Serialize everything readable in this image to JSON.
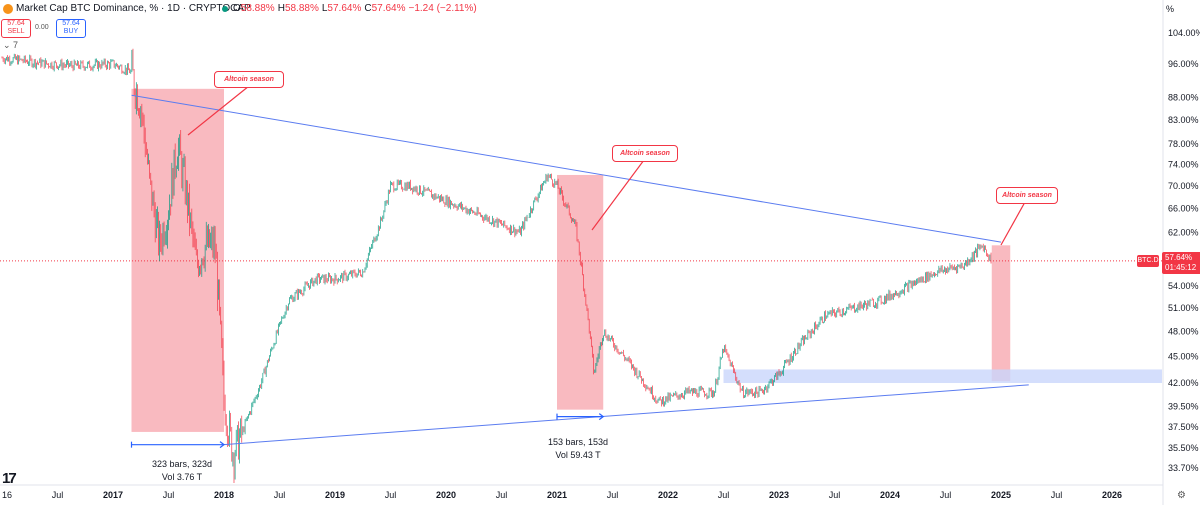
{
  "header": {
    "symbol_title": "Market Cap BTC Dominance, % · 1D · CRYPTOCAP",
    "ohlc": [
      {
        "label": "O",
        "value": "58.88%"
      },
      {
        "label": "H",
        "value": "58.88%"
      },
      {
        "label": "L",
        "value": "57.64%"
      },
      {
        "label": "C",
        "value": "57.64%"
      },
      {
        "label": "",
        "value": "−1.24 (−2.11%)"
      }
    ]
  },
  "trade": {
    "sell_price": "57.64",
    "sell_label": "SELL",
    "spread": "0.00",
    "buy_price": "57.64",
    "buy_label": "BUY",
    "indicator_toggle": "⌄ 7"
  },
  "price_axis": {
    "unit": "%",
    "ticks": [
      "104.00%",
      "96.00%",
      "88.00%",
      "83.00%",
      "78.00%",
      "74.00%",
      "70.00%",
      "66.00%",
      "62.00%",
      "54.00%",
      "51.00%",
      "48.00%",
      "45.00%",
      "42.00%",
      "39.50%",
      "37.50%",
      "35.50%",
      "33.70%"
    ]
  },
  "time_axis": {
    "ticks": [
      "16",
      "Jul",
      "2017",
      "Jul",
      "2018",
      "Jul",
      "2019",
      "Jul",
      "2020",
      "Jul",
      "2021",
      "Jul",
      "2022",
      "Jul",
      "2023",
      "Jul",
      "2024",
      "Jul",
      "2025",
      "Jul",
      "2026"
    ]
  },
  "current_price": {
    "symbol": "BTC.D",
    "price": "57.64%",
    "countdown": "01:45:12"
  },
  "annotations": [
    "Altcoin season",
    "Altcoin season",
    "Altcoin season"
  ],
  "measures": [
    {
      "line1": "323 bars, 323d",
      "line2": "Vol 3.76 T"
    },
    {
      "line1": "153 bars, 153d",
      "line2": "Vol 59.43 T"
    }
  ],
  "colors": {
    "up": "#089981",
    "down": "#f23645",
    "zone": "#f7a3ab",
    "support_zone": "#c9d6fb",
    "trendline": "#5b7cf0"
  },
  "chart_data": {
    "type": "line",
    "title": "Market Cap BTC Dominance, %",
    "ylim": [
      33.7,
      104
    ],
    "y_scale": "log",
    "series": [
      {
        "x": [
          "2016-01",
          "2016-06",
          "2016-09",
          "2017-01",
          "2017-03",
          "2017-04",
          "2017-05",
          "2017-06",
          "2017-07",
          "2017-08",
          "2017-10",
          "2017-11",
          "2017-12",
          "2018-01",
          "2018-02",
          "2018-03",
          "2018-05",
          "2018-08",
          "2018-11",
          "2019-01",
          "2019-04",
          "2019-06",
          "2019-07",
          "2019-09",
          "2019-12",
          "2020-03",
          "2020-06",
          "2020-09",
          "2020-12",
          "2021-01",
          "2021-03",
          "2021-05",
          "2021-06",
          "2021-09",
          "2021-12",
          "2022-03",
          "2022-06",
          "2022-07",
          "2022-09",
          "2022-11",
          "2023-01",
          "2023-03",
          "2023-06",
          "2023-09",
          "2023-12",
          "2024-03",
          "2024-06",
          "2024-09",
          "2024-11",
          "2024-12"
        ],
        "values": [
          97.5,
          96,
          95.5,
          96,
          94,
          86,
          70,
          60,
          66,
          78,
          57,
          60,
          60,
          40,
          35,
          37,
          42,
          52,
          55,
          55,
          56,
          64,
          70,
          70,
          68,
          66,
          64,
          62,
          72,
          70,
          63,
          43,
          48,
          44,
          40,
          41,
          41,
          46,
          41,
          41,
          43,
          46,
          50,
          51,
          52,
          54,
          56,
          57,
          60,
          57.64
        ]
      }
    ],
    "zones": [
      {
        "label": "Altcoin season",
        "x_start": "2017-03",
        "x_end": "2018-01"
      },
      {
        "label": "Altcoin season",
        "x_start": "2021-01",
        "x_end": "2021-06"
      },
      {
        "label": "Altcoin season",
        "x_start": "2024-12",
        "x_end": "2025-02"
      }
    ],
    "support_zone": {
      "y_range": [
        42,
        43.5
      ],
      "x_start": "2022-07"
    },
    "trendlines": [
      {
        "from": [
          "2017-03",
          88.5
        ],
        "to": [
          "2025-01",
          60.5
        ]
      },
      {
        "from": [
          "2018-01",
          35.8
        ],
        "to": [
          "2025-04",
          41.8
        ]
      }
    ],
    "current_value": 57.64
  }
}
